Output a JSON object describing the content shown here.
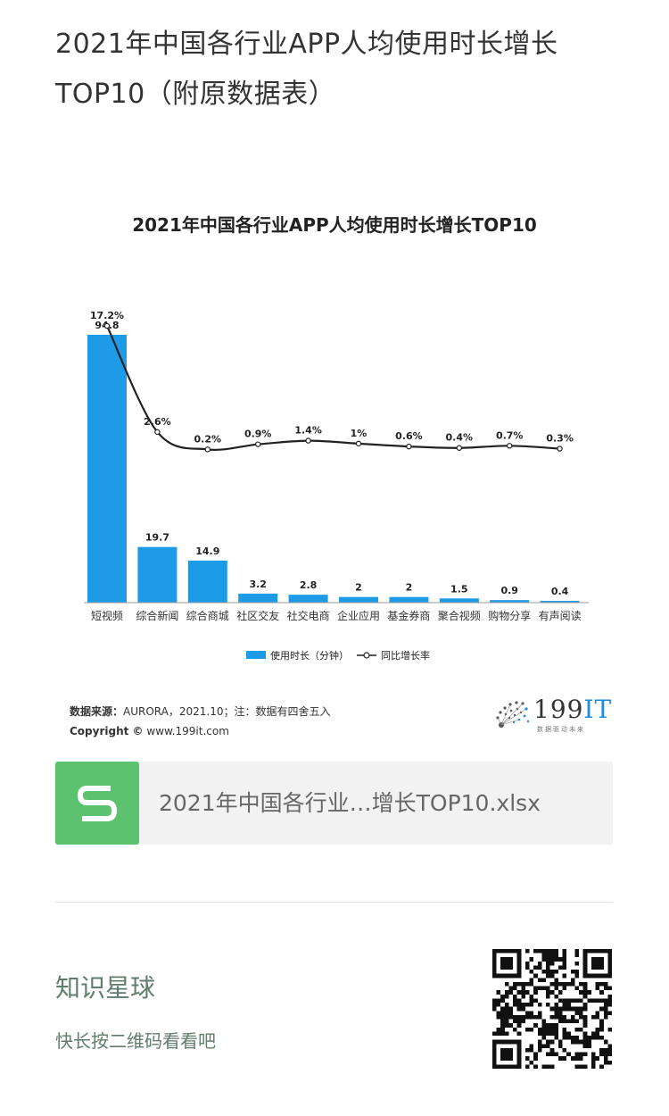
{
  "page": {
    "title": "2021年中国各行业APP人均使用时长增长TOP10（附原数据表）"
  },
  "chart_data": {
    "type": "bar",
    "title": "2021年中国各行业APP人均使用时长增长TOP10",
    "categories": [
      "短视频",
      "综合新闻",
      "综合商城",
      "社区交友",
      "社交电商",
      "企业应用",
      "基金券商",
      "聚合视频",
      "购物分享",
      "有声阅读"
    ],
    "series": [
      {
        "name": "使用时长（分钟）",
        "type": "bar",
        "color": "#1e9be6",
        "values": [
          94.8,
          19.7,
          14.9,
          3.2,
          2.8,
          2,
          2,
          1.5,
          0.9,
          0.4
        ],
        "labels": [
          "94.8",
          "19.7",
          "14.9",
          "3.2",
          "2.8",
          "2",
          "2",
          "1.5",
          "0.9",
          "0.4"
        ]
      },
      {
        "name": "同比增长率",
        "type": "line",
        "color": "#222222",
        "values": [
          17.2,
          2.6,
          0.2,
          0.9,
          1.4,
          1,
          0.6,
          0.4,
          0.7,
          0.3
        ],
        "labels": [
          "17.2%",
          "2.6%",
          "0.2%",
          "0.9%",
          "1.4%",
          "1%",
          "0.6%",
          "0.4%",
          "0.7%",
          "0.3%"
        ]
      }
    ],
    "legend": "bottom",
    "grid": false
  },
  "footer": {
    "source_label": "数据来源：",
    "source_text": "AURORA，2021.10；注：数据有四舍五入",
    "copyright_label": "Copyright ©",
    "copyright_text": "www.199it.com",
    "logo_main": "199",
    "logo_accent": "IT",
    "logo_sub": "数据驱动未来"
  },
  "attachment": {
    "file_name": "2021年中国各行业…增长TOP10.xlsx",
    "icon": "spreadsheet-s-icon",
    "icon_color": "#5cc26f"
  },
  "promo": {
    "title": "知识星球",
    "subtitle": "快长按二维码看看吧",
    "qr_icon": "qr-code-icon"
  }
}
